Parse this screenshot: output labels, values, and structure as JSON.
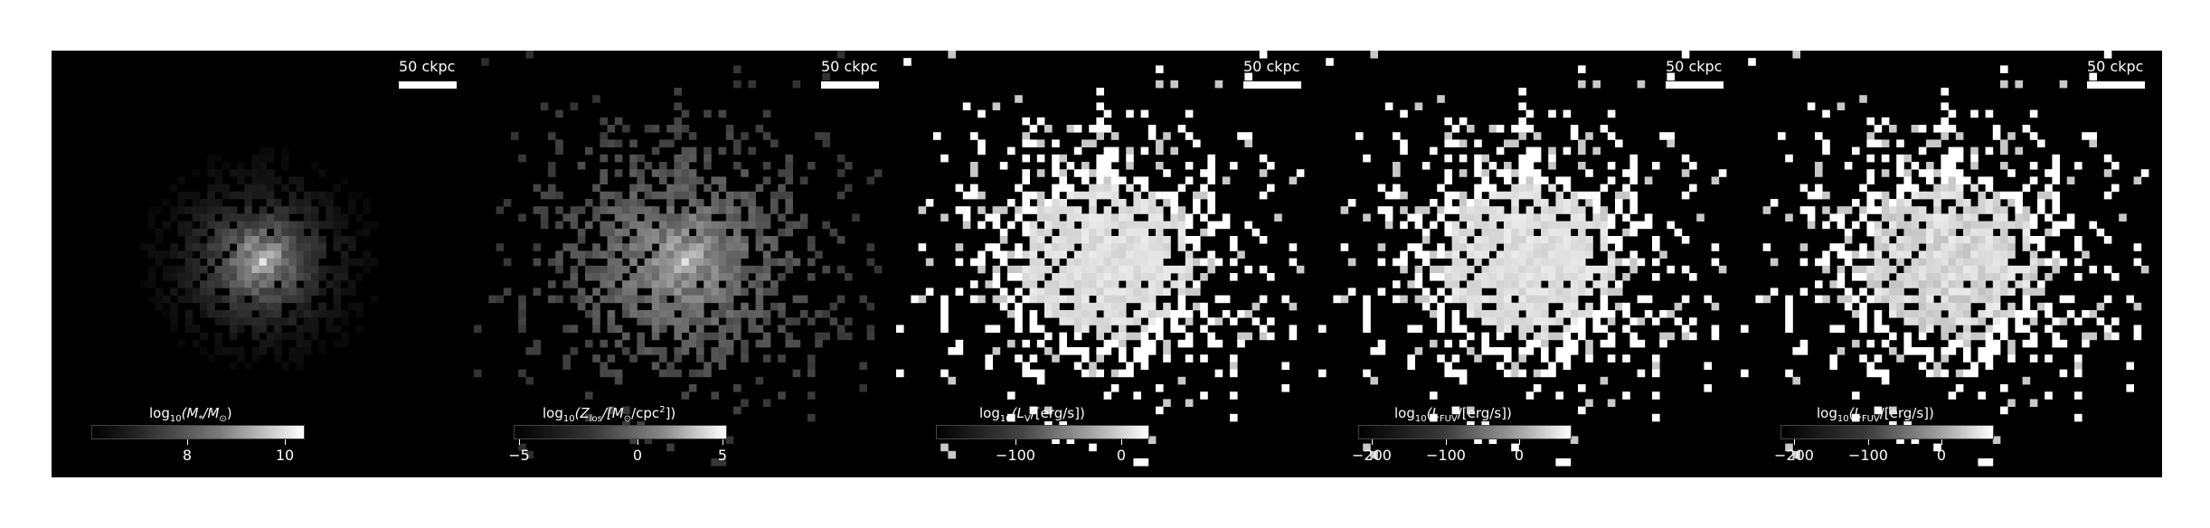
{
  "scale_bar_label": "50 ckpc",
  "chart_data": [
    {
      "type": "heatmap",
      "colorbar_label_parts": [
        "log",
        "10",
        "(M",
        "*",
        "/M",
        "⊙",
        ")"
      ],
      "colorbar_ticks": [
        "8",
        "10"
      ],
      "colorbar_range": [
        6.2,
        10.4
      ]
    },
    {
      "type": "heatmap",
      "colorbar_label_parts": [
        "log",
        "10",
        "(Z",
        "los",
        "/[M",
        "⊙",
        "/cpc",
        "2",
        "])"
      ],
      "colorbar_ticks": [
        "−5",
        "0",
        "5"
      ],
      "colorbar_range": [
        -8.5,
        5
      ]
    },
    {
      "type": "heatmap",
      "colorbar_label_parts": [
        "log",
        "10",
        "(L",
        "V",
        "/[erg/s])"
      ],
      "colorbar_ticks": [
        "−100",
        "0"
      ],
      "colorbar_range": [
        -175,
        22
      ]
    },
    {
      "type": "heatmap",
      "colorbar_label_parts": [
        "log",
        "10",
        "(L",
        "FUV",
        "/[erg/s])"
      ],
      "colorbar_ticks": [
        "−200",
        "−100",
        "0"
      ],
      "colorbar_range": [
        -265,
        22
      ]
    },
    {
      "type": "heatmap",
      "colorbar_label_parts": [
        "log",
        "10",
        "(L",
        "FUV",
        "/[erg/s])"
      ],
      "colorbar_ticks": [
        "−200",
        "−100",
        "0"
      ],
      "colorbar_range": [
        -265,
        22
      ]
    }
  ]
}
